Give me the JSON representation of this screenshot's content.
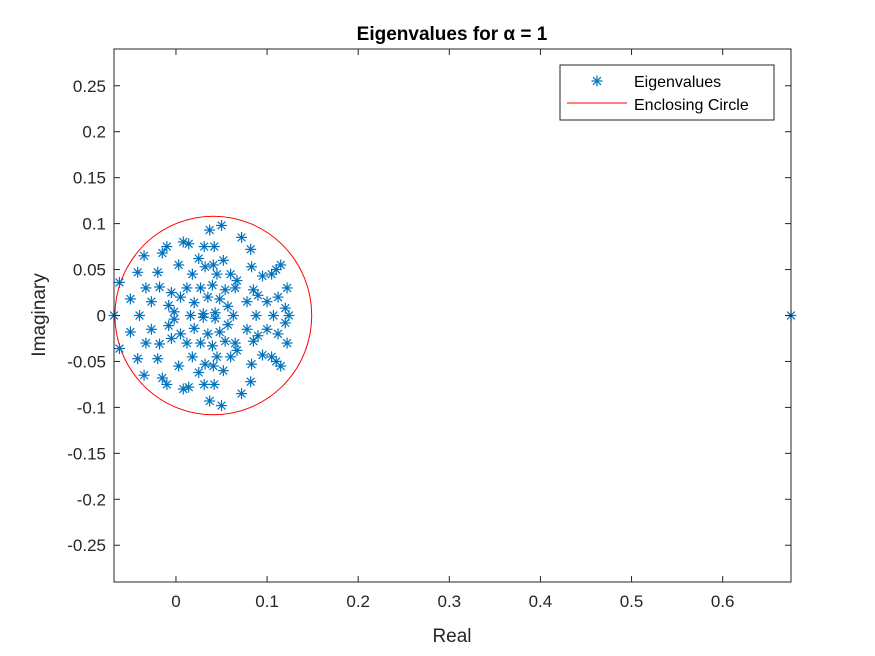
{
  "chart_data": {
    "type": "scatter",
    "title": "Eigenvalues for α = 1",
    "xlabel": "Real",
    "ylabel": "Imaginary",
    "xlim": [
      -0.068,
      0.675
    ],
    "ylim": [
      -0.29,
      0.29
    ],
    "xticks": [
      0,
      0.1,
      0.2,
      0.3,
      0.4,
      0.5,
      0.6
    ],
    "xtick_labels": [
      "0",
      "0.1",
      "0.2",
      "0.3",
      "0.4",
      "0.5",
      "0.6"
    ],
    "yticks": [
      0.25,
      0.2,
      0.15,
      0.1,
      0.05,
      0,
      -0.05,
      -0.1,
      -0.15,
      -0.2,
      -0.25
    ],
    "ytick_labels": [
      "0.25",
      "0.2",
      "0.15",
      "0.1",
      "0.05",
      "0",
      "-0.05",
      "-0.1",
      "-0.15",
      "-0.2",
      "-0.25"
    ],
    "grid": false,
    "legend_position": "top-right",
    "series": [
      {
        "name": "Eigenvalues",
        "marker": "asterisk",
        "color": "#0072BD",
        "points": [
          [
            0.675,
            0.0
          ],
          [
            -0.068,
            0.0
          ],
          [
            -0.062,
            0.036
          ],
          [
            -0.062,
            -0.036
          ],
          [
            -0.05,
            0.018
          ],
          [
            -0.05,
            -0.018
          ],
          [
            -0.042,
            0.047
          ],
          [
            -0.042,
            -0.047
          ],
          [
            -0.04,
            0.0
          ],
          [
            -0.035,
            0.065
          ],
          [
            -0.035,
            -0.065
          ],
          [
            -0.033,
            0.03
          ],
          [
            -0.033,
            -0.03
          ],
          [
            -0.027,
            0.015
          ],
          [
            -0.027,
            -0.015
          ],
          [
            -0.02,
            0.047
          ],
          [
            -0.02,
            -0.047
          ],
          [
            -0.018,
            0.031
          ],
          [
            -0.018,
            -0.031
          ],
          [
            -0.015,
            0.068
          ],
          [
            -0.015,
            -0.068
          ],
          [
            -0.01,
            0.075
          ],
          [
            -0.01,
            -0.075
          ],
          [
            -0.008,
            0.011
          ],
          [
            -0.008,
            -0.011
          ],
          [
            -0.005,
            0.025
          ],
          [
            -0.005,
            -0.025
          ],
          [
            -0.002,
            0.004
          ],
          [
            -0.002,
            -0.004
          ],
          [
            0.003,
            0.055
          ],
          [
            0.003,
            -0.055
          ],
          [
            0.005,
            0.02
          ],
          [
            0.005,
            -0.02
          ],
          [
            0.008,
            0.08
          ],
          [
            0.008,
            -0.08
          ],
          [
            0.012,
            0.03
          ],
          [
            0.012,
            -0.03
          ],
          [
            0.014,
            0.078
          ],
          [
            0.014,
            -0.078
          ],
          [
            0.016,
            0.0
          ],
          [
            0.018,
            0.045
          ],
          [
            0.018,
            -0.045
          ],
          [
            0.02,
            0.014
          ],
          [
            0.02,
            -0.014
          ],
          [
            0.025,
            0.062
          ],
          [
            0.025,
            -0.062
          ],
          [
            0.027,
            0.03
          ],
          [
            0.027,
            -0.03
          ],
          [
            0.03,
            0.002
          ],
          [
            0.03,
            -0.002
          ],
          [
            0.031,
            0.075
          ],
          [
            0.031,
            -0.075
          ],
          [
            0.032,
            0.053
          ],
          [
            0.032,
            -0.053
          ],
          [
            0.035,
            0.02
          ],
          [
            0.035,
            -0.02
          ],
          [
            0.037,
            0.093
          ],
          [
            0.037,
            -0.093
          ],
          [
            0.04,
            0.033
          ],
          [
            0.04,
            -0.033
          ],
          [
            0.041,
            0.055
          ],
          [
            0.041,
            -0.055
          ],
          [
            0.042,
            0.075
          ],
          [
            0.042,
            -0.075
          ],
          [
            0.043,
            0.003
          ],
          [
            0.043,
            -0.003
          ],
          [
            0.045,
            0.045
          ],
          [
            0.045,
            -0.045
          ],
          [
            0.048,
            0.018
          ],
          [
            0.048,
            -0.018
          ],
          [
            0.05,
            0.098
          ],
          [
            0.05,
            -0.098
          ],
          [
            0.052,
            0.06
          ],
          [
            0.052,
            -0.06
          ],
          [
            0.054,
            0.028
          ],
          [
            0.054,
            -0.028
          ],
          [
            0.057,
            0.01
          ],
          [
            0.057,
            -0.01
          ],
          [
            0.06,
            0.045
          ],
          [
            0.06,
            -0.045
          ],
          [
            0.063,
            0.0
          ],
          [
            0.065,
            0.03
          ],
          [
            0.065,
            -0.03
          ],
          [
            0.067,
            0.038
          ],
          [
            0.067,
            -0.038
          ],
          [
            0.072,
            0.085
          ],
          [
            0.072,
            -0.085
          ],
          [
            0.078,
            0.015
          ],
          [
            0.078,
            -0.015
          ],
          [
            0.082,
            0.072
          ],
          [
            0.082,
            -0.072
          ],
          [
            0.083,
            0.053
          ],
          [
            0.083,
            -0.053
          ],
          [
            0.085,
            0.028
          ],
          [
            0.085,
            -0.028
          ],
          [
            0.088,
            0.0
          ],
          [
            0.09,
            0.022
          ],
          [
            0.09,
            -0.022
          ],
          [
            0.095,
            0.043
          ],
          [
            0.095,
            -0.043
          ],
          [
            0.1,
            0.015
          ],
          [
            0.1,
            -0.015
          ],
          [
            0.105,
            0.045
          ],
          [
            0.105,
            -0.045
          ],
          [
            0.107,
            0.0
          ],
          [
            0.11,
            0.05
          ],
          [
            0.11,
            -0.05
          ],
          [
            0.112,
            0.02
          ],
          [
            0.112,
            -0.02
          ],
          [
            0.115,
            0.055
          ],
          [
            0.115,
            -0.055
          ],
          [
            0.12,
            0.008
          ],
          [
            0.12,
            -0.008
          ],
          [
            0.122,
            0.03
          ],
          [
            0.122,
            -0.03
          ],
          [
            0.124,
            0.0
          ]
        ]
      },
      {
        "name": "Enclosing Circle",
        "type": "circle",
        "color": "#FF0000",
        "center": [
          0.041,
          0.0
        ],
        "radius": 0.108
      }
    ]
  }
}
